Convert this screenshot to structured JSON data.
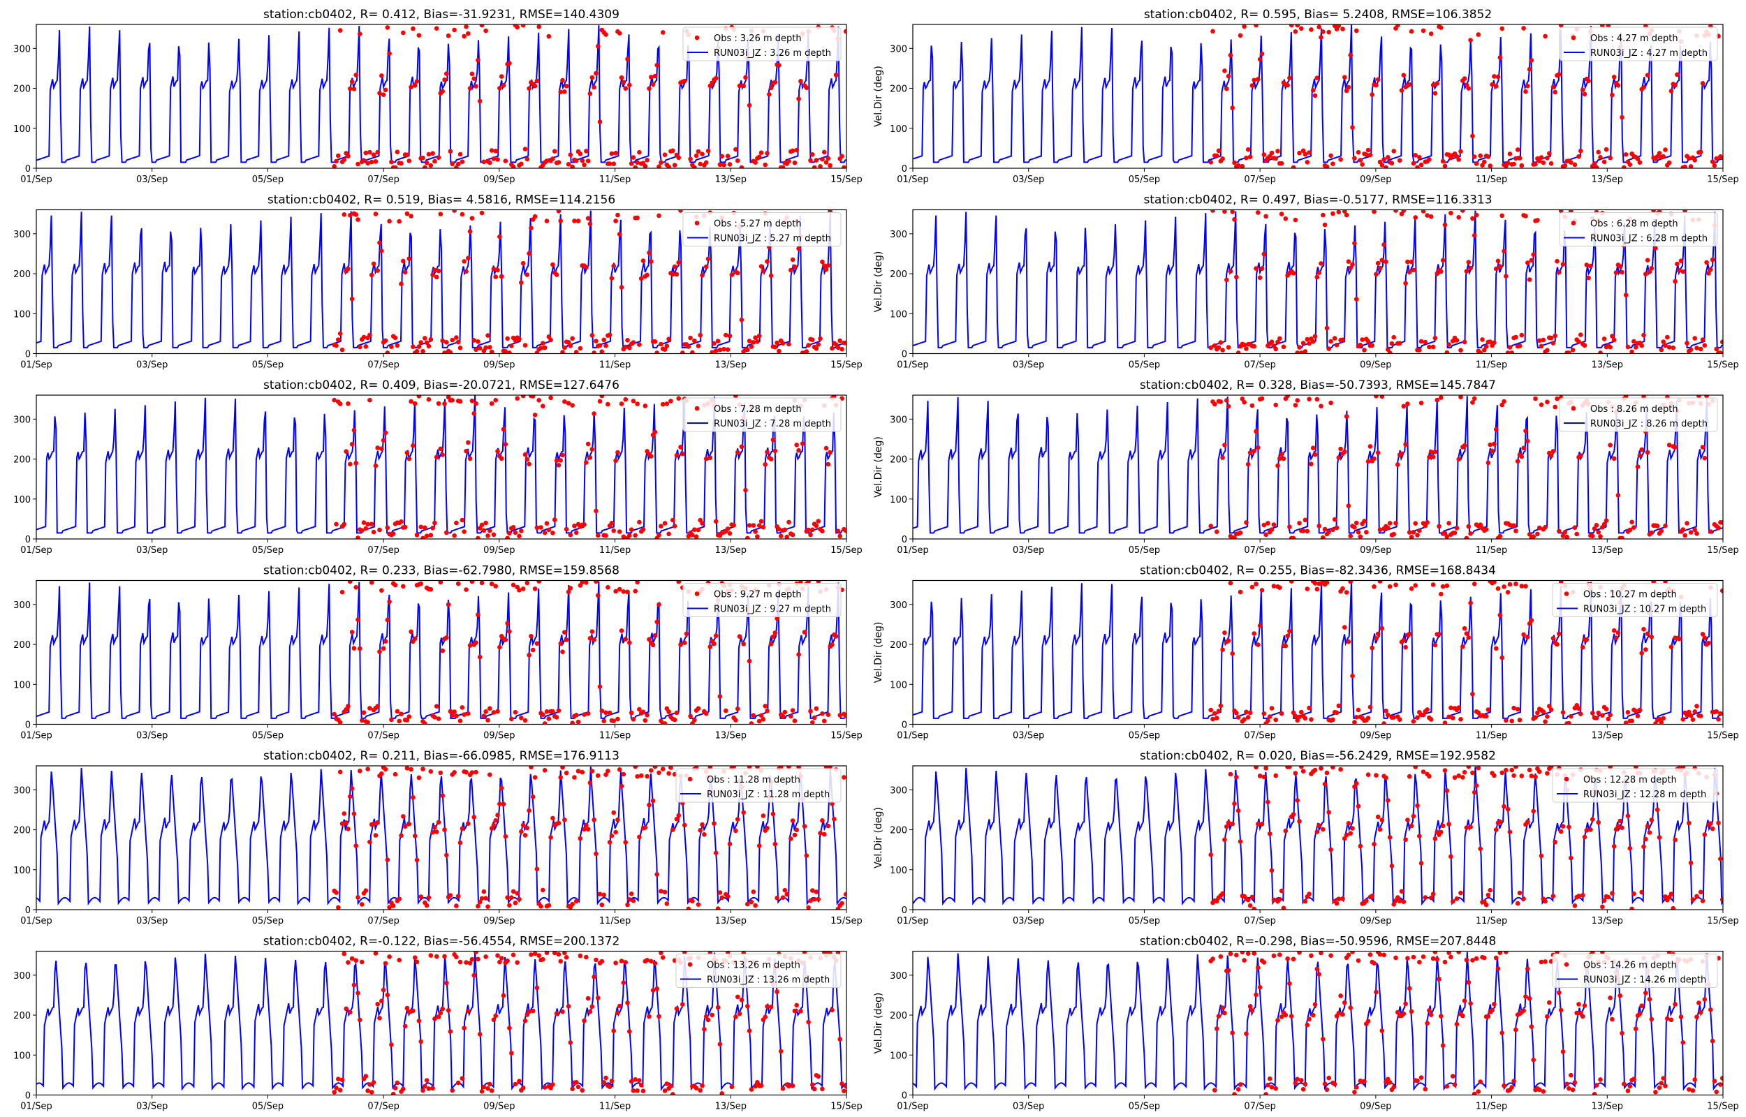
{
  "chart_data": {
    "type": "scatter+line",
    "figure_description_free": true,
    "x_ticks": [
      "01/Sep",
      "03/Sep",
      "05/Sep",
      "07/Sep",
      "09/Sep",
      "11/Sep",
      "13/Sep",
      "15/Sep"
    ],
    "x_range_days": [
      0,
      14
    ],
    "y_ticks": [
      "0",
      "100",
      "200",
      "300"
    ],
    "ylim": [
      0,
      360
    ],
    "ylabel": "Vel.Dir (deg)",
    "obs_start_day": 5.15,
    "colors": {
      "obs": "#ff0000",
      "model": "#0000ff",
      "axes": "#000000"
    },
    "panels": [
      {
        "title": "station:cb0402, R= 0.412, Bias=-31.9231, RMSE=140.4309",
        "obs_label": "Obs : 3.26 m depth",
        "model_label": "RUN03i_JZ : 3.26 m depth",
        "show_ylabel": false,
        "depth": 3.26
      },
      {
        "title": "station:cb0402, R= 0.595, Bias= 5.2408, RMSE=106.3852",
        "obs_label": "Obs : 4.27 m depth",
        "model_label": "RUN03i_JZ : 4.27 m depth",
        "show_ylabel": true,
        "depth": 4.27
      },
      {
        "title": "station:cb0402, R= 0.519, Bias= 4.5816, RMSE=114.2156",
        "obs_label": "Obs : 5.27 m depth",
        "model_label": "RUN03i_JZ : 5.27 m depth",
        "show_ylabel": false,
        "depth": 5.27
      },
      {
        "title": "station:cb0402, R= 0.497, Bias=-0.5177, RMSE=116.3313",
        "obs_label": "Obs : 6.28 m depth",
        "model_label": "RUN03i_JZ : 6.28 m depth",
        "show_ylabel": true,
        "depth": 6.28
      },
      {
        "title": "station:cb0402, R= 0.409, Bias=-20.0721, RMSE=127.6476",
        "obs_label": "Obs : 7.28 m depth",
        "model_label": "RUN03i_JZ : 7.28 m depth",
        "show_ylabel": false,
        "depth": 7.28
      },
      {
        "title": "station:cb0402, R= 0.328, Bias=-50.7393, RMSE=145.7847",
        "obs_label": "Obs : 8.26 m depth",
        "model_label": "RUN03i_JZ : 8.26 m depth",
        "show_ylabel": true,
        "depth": 8.26
      },
      {
        "title": "station:cb0402, R= 0.233, Bias=-62.7980, RMSE=159.8568",
        "obs_label": "Obs : 9.27 m depth",
        "model_label": "RUN03i_JZ : 9.27 m depth",
        "show_ylabel": false,
        "depth": 9.27
      },
      {
        "title": "station:cb0402, R= 0.255, Bias=-82.3436, RMSE=168.8434",
        "obs_label": "Obs : 10.27 m depth",
        "model_label": "RUN03i_JZ : 10.27 m depth",
        "show_ylabel": true,
        "depth": 10.27
      },
      {
        "title": "station:cb0402, R= 0.211, Bias=-66.0985, RMSE=176.9113",
        "obs_label": "Obs : 11.28 m depth",
        "model_label": "RUN03i_JZ : 11.28 m depth",
        "show_ylabel": false,
        "depth": 11.28
      },
      {
        "title": "station:cb0402, R= 0.020, Bias=-56.2429, RMSE=192.9582",
        "obs_label": "Obs : 12.28 m depth",
        "model_label": "RUN03i_JZ : 12.28 m depth",
        "show_ylabel": true,
        "depth": 12.28
      },
      {
        "title": "station:cb0402, R=-0.122, Bias=-56.4554, RMSE=200.1372",
        "obs_label": "Obs : 13.26 m depth",
        "model_label": "RUN03i_JZ : 13.26 m depth",
        "show_ylabel": false,
        "depth": 13.26
      },
      {
        "title": "station:cb0402, R=-0.298, Bias=-50.9596, RMSE=207.8448",
        "obs_label": "Obs : 14.26 m depth",
        "model_label": "RUN03i_JZ : 14.26 m depth",
        "show_ylabel": true,
        "depth": 14.26
      }
    ]
  }
}
